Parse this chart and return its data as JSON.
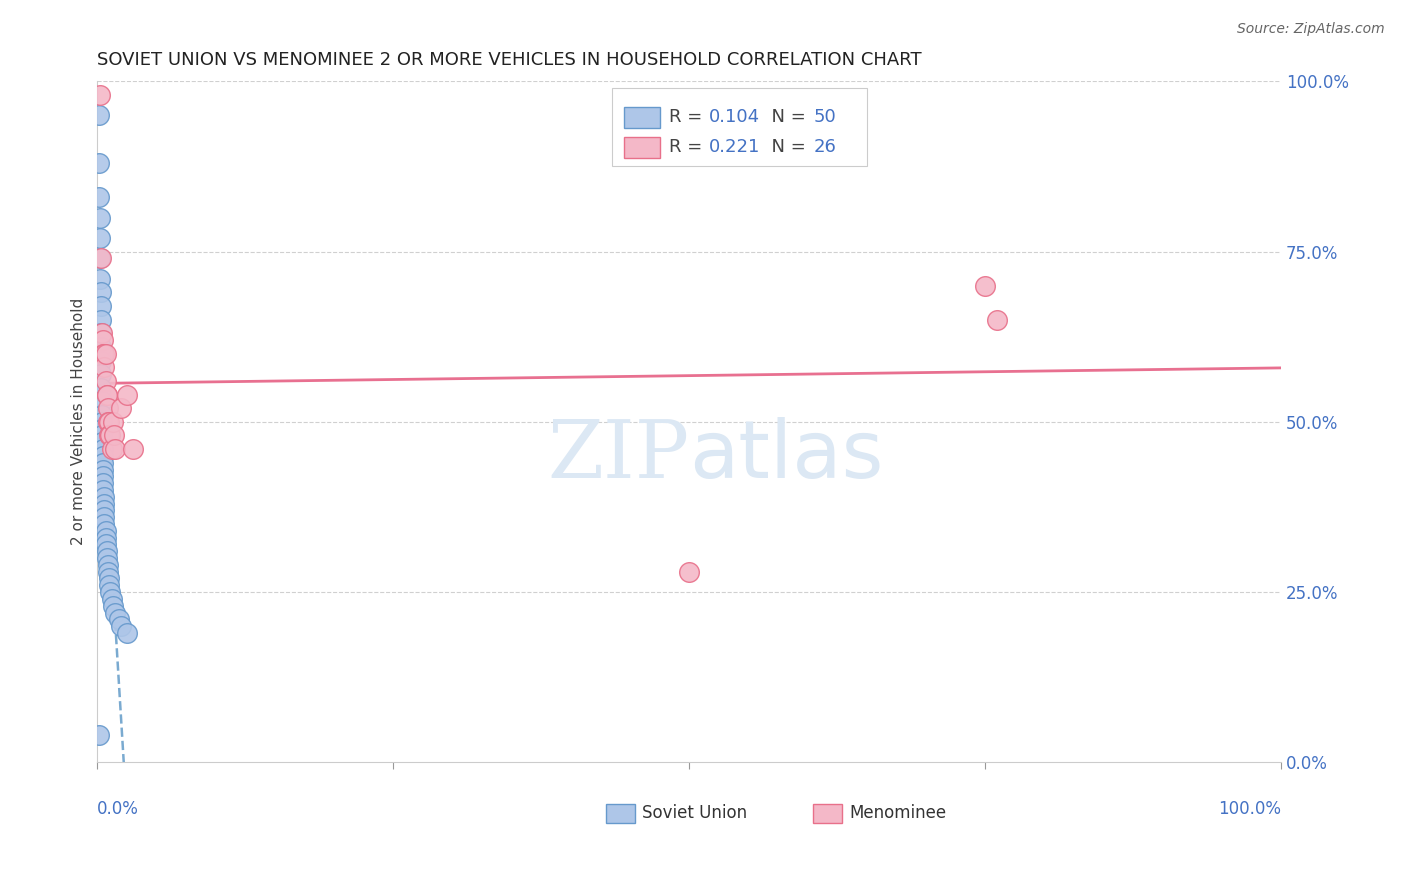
{
  "title": "SOVIET UNION VS MENOMINEE 2 OR MORE VEHICLES IN HOUSEHOLD CORRELATION CHART",
  "source": "Source: ZipAtlas.com",
  "ylabel": "2 or more Vehicles in Household",
  "blue_color": "#aec6e8",
  "pink_color": "#f4b8c8",
  "blue_edge_color": "#6699cc",
  "pink_edge_color": "#e8708a",
  "blue_line_color": "#7aaad0",
  "pink_line_color": "#e87090",
  "legend_blue": "#4472c4",
  "right_axis_color": "#4472c4",
  "watermark_color": "#dce8f4",
  "grid_color": "#d0d0d0",
  "soviet_x": [
    0.001,
    0.001,
    0.001,
    0.002,
    0.002,
    0.002,
    0.002,
    0.003,
    0.003,
    0.003,
    0.003,
    0.003,
    0.003,
    0.003,
    0.003,
    0.004,
    0.004,
    0.004,
    0.004,
    0.004,
    0.004,
    0.005,
    0.005,
    0.005,
    0.005,
    0.005,
    0.005,
    0.005,
    0.006,
    0.006,
    0.006,
    0.006,
    0.006,
    0.007,
    0.007,
    0.007,
    0.008,
    0.008,
    0.009,
    0.009,
    0.01,
    0.01,
    0.011,
    0.012,
    0.013,
    0.015,
    0.018,
    0.02,
    0.025,
    0.001
  ],
  "soviet_y": [
    0.95,
    0.88,
    0.83,
    0.8,
    0.77,
    0.74,
    0.71,
    0.69,
    0.67,
    0.65,
    0.63,
    0.61,
    0.59,
    0.57,
    0.55,
    0.53,
    0.51,
    0.5,
    0.49,
    0.48,
    0.47,
    0.46,
    0.45,
    0.44,
    0.43,
    0.42,
    0.41,
    0.4,
    0.39,
    0.38,
    0.37,
    0.36,
    0.35,
    0.34,
    0.33,
    0.32,
    0.31,
    0.3,
    0.29,
    0.28,
    0.27,
    0.26,
    0.25,
    0.24,
    0.23,
    0.22,
    0.21,
    0.2,
    0.19,
    0.04
  ],
  "menominee_x": [
    0.002,
    0.003,
    0.004,
    0.005,
    0.005,
    0.006,
    0.006,
    0.007,
    0.007,
    0.008,
    0.008,
    0.009,
    0.009,
    0.01,
    0.01,
    0.011,
    0.012,
    0.013,
    0.014,
    0.015,
    0.02,
    0.025,
    0.03,
    0.5,
    0.75,
    0.76
  ],
  "menominee_y": [
    0.98,
    0.74,
    0.63,
    0.62,
    0.6,
    0.6,
    0.58,
    0.6,
    0.56,
    0.54,
    0.54,
    0.52,
    0.5,
    0.5,
    0.48,
    0.48,
    0.46,
    0.5,
    0.48,
    0.46,
    0.52,
    0.54,
    0.46,
    0.28,
    0.7,
    0.65
  ],
  "xlim": [
    0.0,
    1.0
  ],
  "ylim": [
    0.0,
    1.0
  ],
  "right_yticks": [
    0.0,
    0.25,
    0.5,
    0.75,
    1.0
  ],
  "right_yticklabels": [
    "0.0%",
    "25.0%",
    "50.0%",
    "75.0%",
    "100.0%"
  ]
}
